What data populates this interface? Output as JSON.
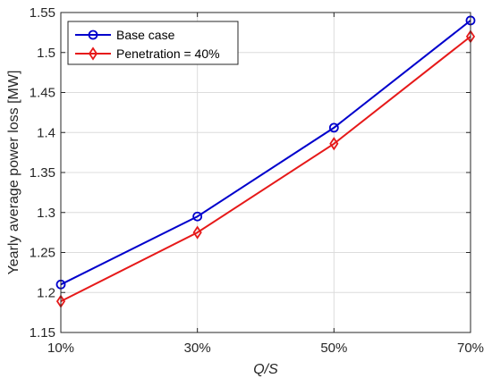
{
  "chart_data": {
    "type": "line",
    "title": "",
    "xlabel": "Q/S",
    "ylabel": "Yearly average power loss [MW]",
    "categories": [
      "10%",
      "30%",
      "50%",
      "70%"
    ],
    "x": [
      10,
      30,
      50,
      70
    ],
    "xlim": [
      10,
      70
    ],
    "ylim": [
      1.15,
      1.55
    ],
    "yticks": [
      1.15,
      1.2,
      1.25,
      1.3,
      1.35,
      1.4,
      1.45,
      1.5,
      1.55
    ],
    "ytick_labels": [
      "1.15",
      "1.2",
      "1.25",
      "1.3",
      "1.35",
      "1.4",
      "1.45",
      "1.5",
      "1.55"
    ],
    "grid": true,
    "legend_position": "top-left",
    "series": [
      {
        "name": "Base case",
        "values": [
          1.21,
          1.295,
          1.406,
          1.54
        ],
        "color": "#0000cc",
        "marker": "circle"
      },
      {
        "name": "Penetration = 40%",
        "values": [
          1.189,
          1.275,
          1.386,
          1.52
        ],
        "color": "#e61919",
        "marker": "diamond"
      }
    ]
  }
}
